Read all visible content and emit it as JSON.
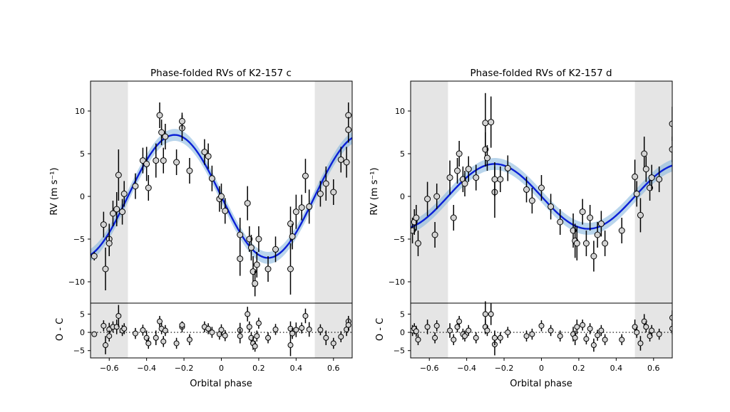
{
  "figure": {
    "xlabel": "Orbital phase",
    "ylabel_main": "RV (m s⁻¹)",
    "ylabel_residual": "O - C",
    "colors": {
      "model": "#0a1fd6",
      "band": "#7fb2dc",
      "shade": "#e5e5e5",
      "point_fill": "#d3d3d3",
      "point_edge": "#000000"
    }
  },
  "chart_data": [
    {
      "type": "scatter",
      "title": "Phase-folded RVs of K2-157 c",
      "xlabel": "Orbital phase",
      "ylabel": "RV (m s⁻¹)",
      "xlim": [
        -0.7,
        0.7
      ],
      "ylim": [
        -12.5,
        13.5
      ],
      "xticks": [
        -0.6,
        -0.4,
        -0.2,
        0.0,
        0.2,
        0.4,
        0.6
      ],
      "yticks": [
        -10,
        -5,
        0,
        5,
        10
      ],
      "shaded_regions": [
        [
          -0.7,
          -0.5
        ],
        [
          0.5,
          0.7
        ]
      ],
      "model": {
        "amplitude": 7.2,
        "phase_of_max": -0.25
      },
      "residual_panel": {
        "ylabel": "O - C",
        "ylim": [
          -7,
          8
        ],
        "yticks": [
          -5,
          0,
          5
        ]
      },
      "points": [
        {
          "x": -0.68,
          "y": -7.0,
          "e": 0.5,
          "r": -0.5
        },
        {
          "x": -0.63,
          "y": -3.3,
          "e": 1.5,
          "r": 1.8
        },
        {
          "x": -0.62,
          "y": -8.5,
          "e": 2.5,
          "r": -3.5
        },
        {
          "x": -0.6,
          "y": -5.0,
          "e": 1.8,
          "r": 0.8
        },
        {
          "x": -0.6,
          "y": -5.5,
          "e": 1.5,
          "r": -1.0
        },
        {
          "x": -0.58,
          "y": -2.0,
          "e": 1.5,
          "r": 1.5
        },
        {
          "x": -0.56,
          "y": -1.5,
          "e": 2.0,
          "r": 1.5
        },
        {
          "x": -0.55,
          "y": 2.5,
          "e": 3.0,
          "r": 4.5
        },
        {
          "x": -0.53,
          "y": -1.8,
          "e": 1.5,
          "r": 0.5
        },
        {
          "x": -0.52,
          "y": 0.3,
          "e": 1.5,
          "r": 1.0
        },
        {
          "x": -0.46,
          "y": 1.2,
          "e": 1.5,
          "r": -0.3
        },
        {
          "x": -0.42,
          "y": 4.2,
          "e": 1.5,
          "r": 0.6
        },
        {
          "x": -0.4,
          "y": 3.8,
          "e": 2.0,
          "r": -1.5
        },
        {
          "x": -0.39,
          "y": 1.0,
          "e": 1.5,
          "r": -3.0
        },
        {
          "x": -0.35,
          "y": 4.2,
          "e": 2.0,
          "r": -1.5
        },
        {
          "x": -0.33,
          "y": 9.5,
          "e": 1.5,
          "r": 3.0
        },
        {
          "x": -0.32,
          "y": 7.5,
          "e": 1.5,
          "r": 1.0
        },
        {
          "x": -0.31,
          "y": 4.2,
          "e": 1.5,
          "r": -2.5
        },
        {
          "x": -0.3,
          "y": 7.0,
          "e": 1.5,
          "r": 0.5
        },
        {
          "x": -0.24,
          "y": 4.0,
          "e": 1.5,
          "r": -3.0
        },
        {
          "x": -0.21,
          "y": 8.0,
          "e": 1.5,
          "r": 1.5
        },
        {
          "x": -0.21,
          "y": 8.8,
          "e": 1.0,
          "r": 2.0
        },
        {
          "x": -0.17,
          "y": 3.0,
          "e": 1.5,
          "r": -2.0
        },
        {
          "x": -0.09,
          "y": 5.2,
          "e": 1.5,
          "r": 1.5
        },
        {
          "x": -0.07,
          "y": 4.7,
          "e": 1.5,
          "r": 1.0
        },
        {
          "x": -0.05,
          "y": 2.1,
          "e": 1.5,
          "r": 0.0
        },
        {
          "x": -0.01,
          "y": -0.3,
          "e": 1.5,
          "r": -0.5
        },
        {
          "x": 0.0,
          "y": 0.0,
          "e": 1.5,
          "r": 0.7
        },
        {
          "x": 0.02,
          "y": -1.7,
          "e": 1.5,
          "r": -0.9
        },
        {
          "x": 0.1,
          "y": -4.5,
          "e": 2.0,
          "r": 0.6
        },
        {
          "x": 0.1,
          "y": -7.3,
          "e": 2.0,
          "r": -1.0
        },
        {
          "x": 0.14,
          "y": -0.8,
          "e": 2.0,
          "r": 5.0
        },
        {
          "x": 0.15,
          "y": -5.0,
          "e": 1.5,
          "r": 1.5
        },
        {
          "x": 0.16,
          "y": -6.0,
          "e": 1.5,
          "r": -1.5
        },
        {
          "x": 0.17,
          "y": -8.8,
          "e": 1.8,
          "r": -3.0
        },
        {
          "x": 0.18,
          "y": -10.2,
          "e": 1.5,
          "r": -3.8
        },
        {
          "x": 0.19,
          "y": -8.0,
          "e": 1.5,
          "r": -1.0
        },
        {
          "x": 0.2,
          "y": -5.0,
          "e": 1.5,
          "r": 2.5
        },
        {
          "x": 0.25,
          "y": -8.5,
          "e": 1.5,
          "r": -1.5
        },
        {
          "x": 0.29,
          "y": -6.2,
          "e": 1.5,
          "r": 0.8
        },
        {
          "x": 0.37,
          "y": -3.2,
          "e": 2.0,
          "r": 1.0
        },
        {
          "x": 0.37,
          "y": -8.5,
          "e": 3.0,
          "r": -3.5
        },
        {
          "x": 0.38,
          "y": -4.7,
          "e": 1.5,
          "r": -0.3
        },
        {
          "x": 0.4,
          "y": -1.8,
          "e": 2.0,
          "r": 0.7
        },
        {
          "x": 0.43,
          "y": -1.3,
          "e": 1.5,
          "r": 1.2
        },
        {
          "x": 0.45,
          "y": 2.4,
          "e": 2.0,
          "r": 4.5
        },
        {
          "x": 0.47,
          "y": -1.2,
          "e": 2.0,
          "r": 0.8
        },
        {
          "x": 0.53,
          "y": 0.3,
          "e": 1.5,
          "r": 0.7
        },
        {
          "x": 0.56,
          "y": 1.5,
          "e": 2.0,
          "r": -1.5
        },
        {
          "x": 0.6,
          "y": 0.5,
          "e": 1.5,
          "r": -3.0
        },
        {
          "x": 0.64,
          "y": 4.3,
          "e": 1.5,
          "r": -1.2
        },
        {
          "x": 0.67,
          "y": 4.0,
          "e": 1.8,
          "r": 0.8
        },
        {
          "x": 0.68,
          "y": 9.5,
          "e": 1.5,
          "r": 3.0
        },
        {
          "x": 0.68,
          "y": 7.8,
          "e": 1.5,
          "r": 2.0
        }
      ]
    },
    {
      "type": "scatter",
      "title": "Phase-folded RVs of K2-157 d",
      "xlabel": "Orbital phase",
      "ylabel": "RV (m s⁻¹)",
      "xlim": [
        -0.7,
        0.7
      ],
      "ylim": [
        -12.5,
        13.5
      ],
      "xticks": [
        -0.6,
        -0.4,
        -0.2,
        0.0,
        0.2,
        0.4,
        0.6
      ],
      "yticks": [
        -10,
        -5,
        0,
        5,
        10
      ],
      "shaded_regions": [
        [
          -0.7,
          -0.5
        ],
        [
          0.5,
          0.7
        ]
      ],
      "model": {
        "amplitude": 3.8,
        "phase_of_max": -0.25
      },
      "residual_panel": {
        "ylabel": "O - C",
        "ylim": [
          -7,
          8
        ],
        "yticks": [
          -5,
          0,
          5
        ]
      },
      "points": [
        {
          "x": -0.69,
          "y": -4.0,
          "e": 1.5,
          "r": 0.5
        },
        {
          "x": -0.68,
          "y": -3.0,
          "e": 1.5,
          "r": 1.0
        },
        {
          "x": -0.67,
          "y": -2.5,
          "e": 1.5,
          "r": 0.3
        },
        {
          "x": -0.66,
          "y": -5.5,
          "e": 1.5,
          "r": -2.0
        },
        {
          "x": -0.61,
          "y": -0.3,
          "e": 2.0,
          "r": 1.5
        },
        {
          "x": -0.57,
          "y": -4.5,
          "e": 1.5,
          "r": -1.5
        },
        {
          "x": -0.56,
          "y": 0.0,
          "e": 1.5,
          "r": 1.8
        },
        {
          "x": -0.49,
          "y": 2.2,
          "e": 2.0,
          "r": 0.5
        },
        {
          "x": -0.47,
          "y": -2.5,
          "e": 1.5,
          "r": -2.0
        },
        {
          "x": -0.45,
          "y": 3.0,
          "e": 1.5,
          "r": 1.5
        },
        {
          "x": -0.44,
          "y": 5.0,
          "e": 1.5,
          "r": 3.0
        },
        {
          "x": -0.42,
          "y": 2.0,
          "e": 1.5,
          "r": -0.5
        },
        {
          "x": -0.41,
          "y": 1.5,
          "e": 1.5,
          "r": -1.0
        },
        {
          "x": -0.39,
          "y": 3.2,
          "e": 1.5,
          "r": 0.5
        },
        {
          "x": -0.35,
          "y": 2.2,
          "e": 1.5,
          "r": -1.5
        },
        {
          "x": -0.3,
          "y": 8.6,
          "e": 3.5,
          "r": 5.0
        },
        {
          "x": -0.3,
          "y": 5.5,
          "e": 2.0,
          "r": 1.5
        },
        {
          "x": -0.29,
          "y": 4.5,
          "e": 1.5,
          "r": 0.5
        },
        {
          "x": -0.27,
          "y": 8.7,
          "e": 3.0,
          "r": 5.0
        },
        {
          "x": -0.25,
          "y": 0.5,
          "e": 3.0,
          "r": -3.3
        },
        {
          "x": -0.25,
          "y": 2.0,
          "e": 2.0,
          "r": -1.5
        },
        {
          "x": -0.22,
          "y": 2.0,
          "e": 1.5,
          "r": -1.5
        },
        {
          "x": -0.18,
          "y": 3.3,
          "e": 1.5,
          "r": 0.0
        },
        {
          "x": -0.08,
          "y": 0.8,
          "e": 1.5,
          "r": -1.0
        },
        {
          "x": -0.05,
          "y": -0.5,
          "e": 1.5,
          "r": -0.5
        },
        {
          "x": 0.0,
          "y": 1.0,
          "e": 1.5,
          "r": 1.8
        },
        {
          "x": 0.05,
          "y": -1.2,
          "e": 1.5,
          "r": 0.5
        },
        {
          "x": 0.1,
          "y": -3.0,
          "e": 1.5,
          "r": -1.0
        },
        {
          "x": 0.17,
          "y": -4.0,
          "e": 2.0,
          "r": -0.5
        },
        {
          "x": 0.18,
          "y": -5.2,
          "e": 2.0,
          "r": -1.5
        },
        {
          "x": 0.19,
          "y": -5.5,
          "e": 2.0,
          "r": 1.5
        },
        {
          "x": 0.22,
          "y": -1.8,
          "e": 1.5,
          "r": 2.0
        },
        {
          "x": 0.24,
          "y": -5.5,
          "e": 1.5,
          "r": -1.8
        },
        {
          "x": 0.26,
          "y": -2.5,
          "e": 1.5,
          "r": 1.0
        },
        {
          "x": 0.28,
          "y": -7.0,
          "e": 1.8,
          "r": -3.5
        },
        {
          "x": 0.3,
          "y": -4.5,
          "e": 1.5,
          "r": -0.8
        },
        {
          "x": 0.32,
          "y": -3.2,
          "e": 1.5,
          "r": 0.5
        },
        {
          "x": 0.34,
          "y": -5.5,
          "e": 1.5,
          "r": -2.0
        },
        {
          "x": 0.43,
          "y": -4.0,
          "e": 1.5,
          "r": -2.0
        },
        {
          "x": 0.5,
          "y": 2.3,
          "e": 2.0,
          "r": 1.5
        },
        {
          "x": 0.51,
          "y": 0.3,
          "e": 1.5,
          "r": 0.0
        },
        {
          "x": 0.53,
          "y": -2.2,
          "e": 2.0,
          "r": -3.0
        },
        {
          "x": 0.55,
          "y": 5.0,
          "e": 2.0,
          "r": 3.0
        },
        {
          "x": 0.56,
          "y": 3.2,
          "e": 1.5,
          "r": 1.5
        },
        {
          "x": 0.58,
          "y": 1.0,
          "e": 1.5,
          "r": -1.0
        },
        {
          "x": 0.59,
          "y": 2.2,
          "e": 1.5,
          "r": 0.5
        },
        {
          "x": 0.63,
          "y": 2.0,
          "e": 1.5,
          "r": -0.5
        },
        {
          "x": 0.7,
          "y": 5.5,
          "e": 1.5,
          "r": 1.0
        },
        {
          "x": 0.7,
          "y": 8.5,
          "e": 2.0,
          "r": 4.0
        }
      ]
    }
  ]
}
